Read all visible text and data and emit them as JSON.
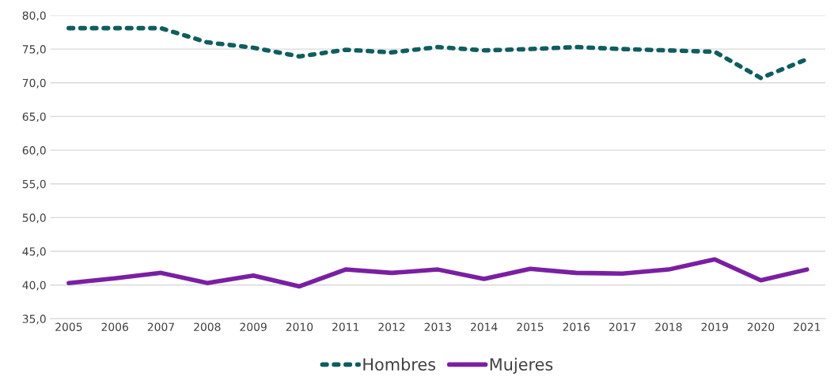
{
  "chart_data": {
    "type": "line",
    "categories": [
      "2005",
      "2006",
      "2007",
      "2008",
      "2009",
      "2010",
      "2011",
      "2012",
      "2013",
      "2014",
      "2015",
      "2016",
      "2017",
      "2018",
      "2019",
      "2020",
      "2021"
    ],
    "series": [
      {
        "name": "Hombres",
        "color": "#0e5e5e",
        "line_style": "dotted",
        "values": [
          78.1,
          78.1,
          78.1,
          76.0,
          75.2,
          73.9,
          74.9,
          74.5,
          75.3,
          74.8,
          75.0,
          75.3,
          75.0,
          74.8,
          74.6,
          70.7,
          73.5
        ]
      },
      {
        "name": "Mujeres",
        "color": "#7a1fa2",
        "line_style": "solid",
        "values": [
          40.3,
          41.0,
          41.8,
          40.3,
          41.4,
          39.8,
          42.3,
          41.8,
          42.3,
          40.9,
          42.4,
          41.8,
          41.7,
          42.3,
          43.8,
          40.7,
          42.3
        ]
      }
    ],
    "ylim": [
      35,
      80
    ],
    "yticks": [
      {
        "value": 35,
        "label": "35,0"
      },
      {
        "value": 40,
        "label": "40,0"
      },
      {
        "value": 45,
        "label": "45,0"
      },
      {
        "value": 50,
        "label": "50,0"
      },
      {
        "value": 55,
        "label": "55,0"
      },
      {
        "value": 60,
        "label": "60,0"
      },
      {
        "value": 65,
        "label": "65,0"
      },
      {
        "value": 70,
        "label": "70,0"
      },
      {
        "value": 75,
        "label": "75,0"
      },
      {
        "value": 80,
        "label": "80,0"
      }
    ],
    "grid": "y",
    "legend": "bottom"
  }
}
